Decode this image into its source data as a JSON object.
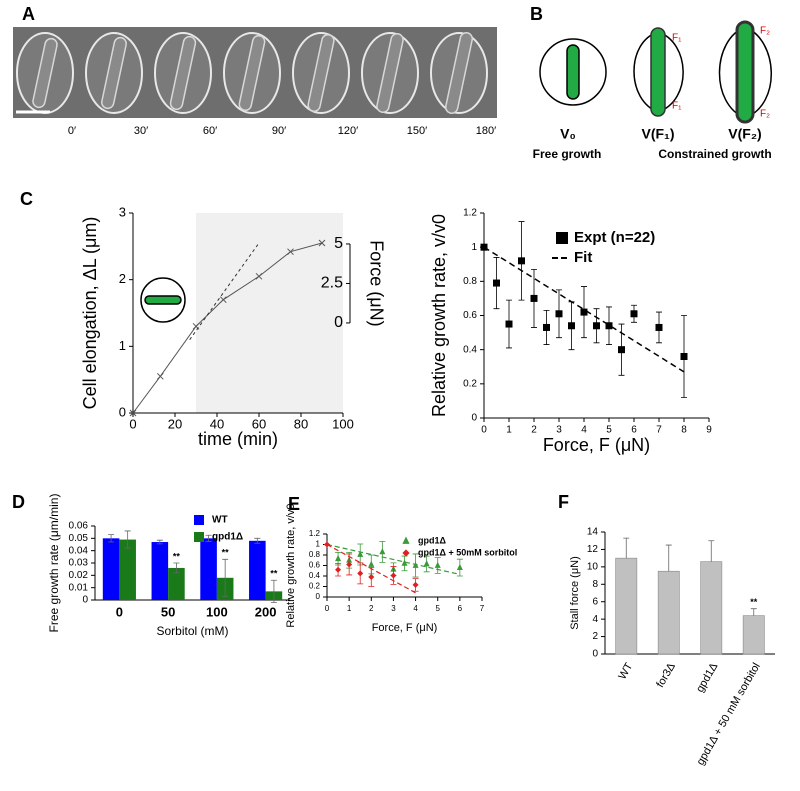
{
  "panel_labels": [
    "A",
    "B",
    "C",
    "D",
    "E",
    "F"
  ],
  "panel_a": {
    "times": [
      "0′",
      "30′",
      "60′",
      "90′",
      "120′",
      "150′",
      "180′"
    ]
  },
  "panel_b": {
    "labels": [
      "V₀",
      "V(F₁)",
      "V(F₂)"
    ],
    "captions": [
      "Free growth",
      "Constrained growth"
    ],
    "forces": [
      "F₁",
      "F₁",
      "F₂",
      "F₂"
    ]
  },
  "chart_data": [
    {
      "type": "line",
      "xlabel": "time (min)",
      "ylabel": "Cell elongation, ΔL (μm)",
      "y2label": "Force (μN)",
      "xlim": [
        0,
        100
      ],
      "xticks": [
        0,
        20,
        40,
        60,
        80,
        100
      ],
      "ylim": [
        0,
        3
      ],
      "yticks": [
        0,
        1,
        2,
        3
      ],
      "y2lim": [
        -5.7,
        6.96
      ],
      "y2ticks": [
        0,
        2.5,
        5
      ],
      "shaded_region": [
        30,
        100
      ],
      "series": [
        {
          "color": "#555555",
          "marker": "x",
          "x": [
            0,
            13,
            30,
            43,
            60,
            75,
            90
          ],
          "values": [
            0,
            0.55,
            1.3,
            1.7,
            2.05,
            2.42,
            2.55
          ],
          "fit": {
            "x": [
              27,
              60
            ],
            "values": [
              1.1,
              2.55
            ]
          }
        }
      ]
    },
    {
      "type": "scatter",
      "xlabel": "Force, F (μN)",
      "ylabel": "Relative growth rate, v/v0",
      "xlim": [
        0,
        9
      ],
      "xticks": [
        0,
        1,
        2,
        3,
        4,
        5,
        6,
        7,
        8,
        9
      ],
      "ylim": [
        0,
        1.2
      ],
      "yticks": [
        0,
        0.2,
        0.4,
        0.6,
        0.8,
        1,
        1.2
      ],
      "series": [
        {
          "name": "Expt (n=22)",
          "color": "#000000",
          "marker": "square",
          "x": [
            0,
            0.5,
            1,
            1.5,
            2,
            2.5,
            3,
            3.5,
            4,
            4.5,
            5,
            5.5,
            6,
            7,
            8
          ],
          "values": [
            1,
            0.79,
            0.55,
            0.92,
            0.7,
            0.53,
            0.61,
            0.54,
            0.62,
            0.54,
            0.54,
            0.4,
            0.61,
            0.53,
            0.36
          ],
          "errors": [
            0,
            0.15,
            0.14,
            0.23,
            0.17,
            0.1,
            0.14,
            0.14,
            0.15,
            0.1,
            0.11,
            0.15,
            0.05,
            0.09,
            0.24
          ]
        },
        {
          "name": "Fit",
          "color": "#000000",
          "style": "dashed",
          "x": [
            0,
            8
          ],
          "values": [
            1,
            0.27
          ]
        }
      ]
    },
    {
      "type": "bar",
      "xlabel": "Sorbitol (mM)",
      "ylabel": "Free growth rate (μm/min)",
      "categories": [
        "0",
        "50",
        "100",
        "200"
      ],
      "ylim": [
        0,
        0.06
      ],
      "yticks": [
        0,
        0.01,
        0.02,
        0.03,
        0.04,
        0.05,
        0.06
      ],
      "series": [
        {
          "name": "WT",
          "color": "#0000ff",
          "values": [
            0.05,
            0.047,
            0.05,
            0.048
          ],
          "errors": [
            0.003,
            0.0015,
            0.0025,
            0.002
          ]
        },
        {
          "name": "gpd1Δ",
          "color": "#1a7a1a",
          "values": [
            0.049,
            0.026,
            0.018,
            0.007
          ],
          "errors": [
            0.007,
            0.004,
            0.015,
            0.009
          ],
          "significance": [
            null,
            "**",
            "**",
            "**"
          ]
        }
      ]
    },
    {
      "type": "scatter",
      "xlabel": "Force, F (μN)",
      "ylabel": "Relative growth rate, v/v0",
      "xlim": [
        0,
        7
      ],
      "xticks": [
        0,
        1,
        2,
        3,
        4,
        5,
        6,
        7
      ],
      "ylim": [
        0,
        1.2
      ],
      "yticks": [
        0,
        0.2,
        0.4,
        0.6,
        0.8,
        1,
        1.2
      ],
      "series": [
        {
          "name": "gpd1Δ",
          "color": "#3a9a3a",
          "marker": "triangle",
          "x": [
            0.5,
            1,
            1.5,
            2,
            2.5,
            3,
            3.5,
            4,
            4.5,
            5,
            6
          ],
          "values": [
            0.73,
            0.7,
            0.81,
            0.62,
            0.86,
            0.53,
            0.64,
            0.6,
            0.63,
            0.6,
            0.56
          ],
          "errors": [
            0.12,
            0.15,
            0.2,
            0.18,
            0.2,
            0.12,
            0.14,
            0.22,
            0.15,
            0.15,
            0.16
          ],
          "fit": {
            "x": [
              0,
              6
            ],
            "values": [
              1,
              0.43
            ]
          }
        },
        {
          "name": "gpd1Δ + 50mM sorbitol",
          "color": "#e02020",
          "marker": "diamond",
          "x": [
            0,
            0.5,
            1,
            1.5,
            2,
            3,
            4
          ],
          "values": [
            1,
            0.52,
            0.62,
            0.45,
            0.38,
            0.41,
            0.23
          ],
          "errors": [
            0,
            0.12,
            0.2,
            0.2,
            0.18,
            0.17,
            0.12
          ],
          "fit": {
            "x": [
              0,
              4
            ],
            "values": [
              1,
              0.08
            ]
          }
        }
      ]
    },
    {
      "type": "bar",
      "ylabel": "Stall force (μN)",
      "categories": [
        "WT",
        "for3Δ",
        "gpd1Δ",
        "gpd1Δ + 50 mM sorbitol"
      ],
      "ylim": [
        0,
        14
      ],
      "yticks": [
        0,
        2,
        4,
        6,
        8,
        10,
        12,
        14
      ],
      "series": [
        {
          "color": "#c0c0c0",
          "values": [
            11,
            9.5,
            10.6,
            4.4
          ],
          "errors": [
            2.3,
            3,
            2.4,
            0.8
          ],
          "significance": [
            null,
            null,
            null,
            "**"
          ]
        }
      ]
    }
  ]
}
